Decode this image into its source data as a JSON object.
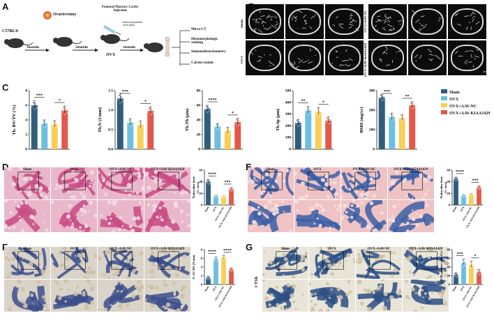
{
  "panels": {
    "A": {
      "letter": "A",
      "mouse_strain": "C57BL/6",
      "surgery": "Ovariectomy",
      "gap1": "3months",
      "gap2": "2months",
      "gap3": "2months",
      "model": "OVX",
      "injection_title": "Femoral Marrow Cavity\nInjection",
      "vector": "Adeno-associated\nvirus (AAV)",
      "assays": [
        "Micro-CT",
        "Histomorphologic\nstaining",
        "Immunohistochemistry",
        "Calcein stainin"
      ]
    },
    "B": {
      "letter": "B",
      "group_labels": [
        "Sham",
        "OVX",
        "OVX+AAV-NC",
        "OVX+AAV-KIAA1429"
      ],
      "scale": "1mm"
    },
    "C": {
      "letter": "C",
      "legend": [
        "Sham",
        "OVX",
        "OVX+AAV-NC",
        "OVX+AAV-KIAA1429"
      ]
    },
    "D": {
      "letter": "D",
      "groups": [
        "Sham",
        "OVX",
        "OVX+AAV-NC",
        "OVX+AAV-KIAA1429"
      ]
    },
    "E": {
      "letter": "E",
      "groups": [
        "Sham",
        "OVX",
        "OVX+AAV-NC",
        "OVX+AAV-KIAA1429"
      ]
    },
    "F": {
      "letter": "F",
      "groups": [
        "Sham",
        "OVX",
        "OVX+AAV-NC",
        "OVX+AAV-KIAA1429"
      ]
    },
    "G": {
      "letter": "G",
      "groups": [
        "Sham",
        "OVX",
        "OVX+AAV-NC",
        "OVX+AAV-KIAA1429"
      ],
      "side_label": "CTSK"
    }
  },
  "colors": {
    "sham": "#2f5d7c",
    "ovx": "#6cbfe0",
    "nc": "#f7cf57",
    "kiaa": "#e2584a"
  },
  "chart_data": [
    {
      "id": "bvtv",
      "type": "bar",
      "ylabel": "Tb. BV/TV (%)",
      "ylim": [
        0,
        8
      ],
      "yticks": [
        0,
        2,
        4,
        6,
        8
      ],
      "values": [
        6.0,
        3.5,
        3.4,
        5.3
      ],
      "errors": [
        0.6,
        0.5,
        0.5,
        0.6
      ],
      "sig": [
        {
          "from": 0,
          "to": 1,
          "label": "***"
        },
        {
          "from": 2,
          "to": 3,
          "label": "*"
        }
      ]
    },
    {
      "id": "tbn",
      "type": "bar",
      "ylabel": "Tb.N (1/mm)",
      "ylim": [
        0,
        1.5
      ],
      "yticks": [
        0.0,
        0.5,
        1.0,
        1.5
      ],
      "values": [
        1.3,
        0.68,
        0.62,
        0.98
      ],
      "errors": [
        0.12,
        0.1,
        0.1,
        0.1
      ],
      "sig": [
        {
          "from": 0,
          "to": 1,
          "label": "***"
        },
        {
          "from": 2,
          "to": 3,
          "label": "*"
        }
      ]
    },
    {
      "id": "tbth",
      "type": "bar",
      "ylabel": "Tb.Th (μm)",
      "ylim": [
        0,
        80
      ],
      "yticks": [
        0,
        20,
        40,
        60,
        80
      ],
      "values": [
        55,
        31,
        25,
        37
      ],
      "errors": [
        5,
        4,
        5,
        5
      ],
      "sig": [
        {
          "from": 0,
          "to": 1,
          "label": "****"
        },
        {
          "from": 2,
          "to": 3,
          "label": "*"
        }
      ]
    },
    {
      "id": "tbsp",
      "type": "bar",
      "ylabel": "Tb.Sp (μm)",
      "ylim": [
        0,
        500
      ],
      "yticks": [
        0,
        100,
        200,
        300,
        400,
        500
      ],
      "values": [
        225,
        330,
        320,
        245
      ],
      "errors": [
        30,
        35,
        35,
        30
      ],
      "sig": [
        {
          "from": 0,
          "to": 1,
          "label": "**"
        },
        {
          "from": 2,
          "to": 3,
          "label": "*"
        }
      ]
    },
    {
      "id": "bmd",
      "type": "bar",
      "ylabel": "BMD (mg/cc)",
      "ylim": [
        0,
        300
      ],
      "yticks": [
        0,
        100,
        200,
        300
      ],
      "values": [
        265,
        165,
        160,
        225
      ],
      "errors": [
        15,
        20,
        18,
        18
      ],
      "sig": [
        {
          "from": 0,
          "to": 1,
          "label": "***"
        },
        {
          "from": 2,
          "to": 3,
          "label": "**"
        }
      ]
    },
    {
      "id": "d_trab",
      "type": "bar",
      "ylabel": "Trabecular bone\n(% area)",
      "ylim": [
        0,
        60
      ],
      "yticks": [
        0,
        20,
        40,
        60
      ],
      "values": [
        40,
        15,
        14,
        27
      ],
      "errors": [
        4,
        2,
        2,
        3
      ],
      "categories": [
        "Sham",
        "OVX",
        "OVX+AAV-NC",
        "OVX+AAV-KIAA1429"
      ],
      "sig": [
        {
          "from": 0,
          "to": 1,
          "label": "****"
        },
        {
          "from": 2,
          "to": 3,
          "label": "***"
        }
      ]
    },
    {
      "id": "e_trab",
      "type": "bar",
      "ylabel": "Trabecular bone\n(% area)",
      "ylim": [
        0,
        60
      ],
      "yticks": [
        0,
        20,
        40,
        60
      ],
      "values": [
        45,
        16,
        18,
        30
      ],
      "errors": [
        3,
        2,
        2,
        3
      ],
      "categories": [
        "Sham",
        "OVX",
        "OVX+AAV-NC",
        "OVX+AAV-KIAA1429"
      ],
      "sig": [
        {
          "from": 0,
          "to": 1,
          "label": "****"
        },
        {
          "from": 2,
          "to": 3,
          "label": "***"
        }
      ]
    },
    {
      "id": "f_noc",
      "type": "bar",
      "ylabel": "N. OC/BS (N/mm)",
      "ylim": [
        0,
        8
      ],
      "yticks": [
        0,
        2,
        4,
        6,
        8
      ],
      "values": [
        1.5,
        5.8,
        6.2,
        3.4
      ],
      "errors": [
        0.4,
        0.5,
        0.5,
        0.4
      ],
      "categories": [
        "Sham",
        "OVX",
        "OVX+AAV-NC",
        "OVX+AAV-KIAA1429"
      ],
      "sig": [
        {
          "from": 0,
          "to": 1,
          "label": "****"
        },
        {
          "from": 2,
          "to": 3,
          "label": "****"
        }
      ]
    },
    {
      "id": "g_ctsk",
      "type": "bar",
      "ylabel": "CTSK positive cells (%)",
      "ylim": [
        0,
        80
      ],
      "yticks": [
        0,
        20,
        40,
        60,
        80
      ],
      "values": [
        22,
        50,
        45,
        28
      ],
      "errors": [
        5,
        8,
        8,
        6
      ],
      "categories": [
        "Sham",
        "OVX",
        "OVX+AAV-NC",
        "OVX+AAV-KIAA1429"
      ],
      "sig": [
        {
          "from": 0,
          "to": 1,
          "label": "***"
        },
        {
          "from": 2,
          "to": 3,
          "label": "*"
        }
      ]
    }
  ]
}
